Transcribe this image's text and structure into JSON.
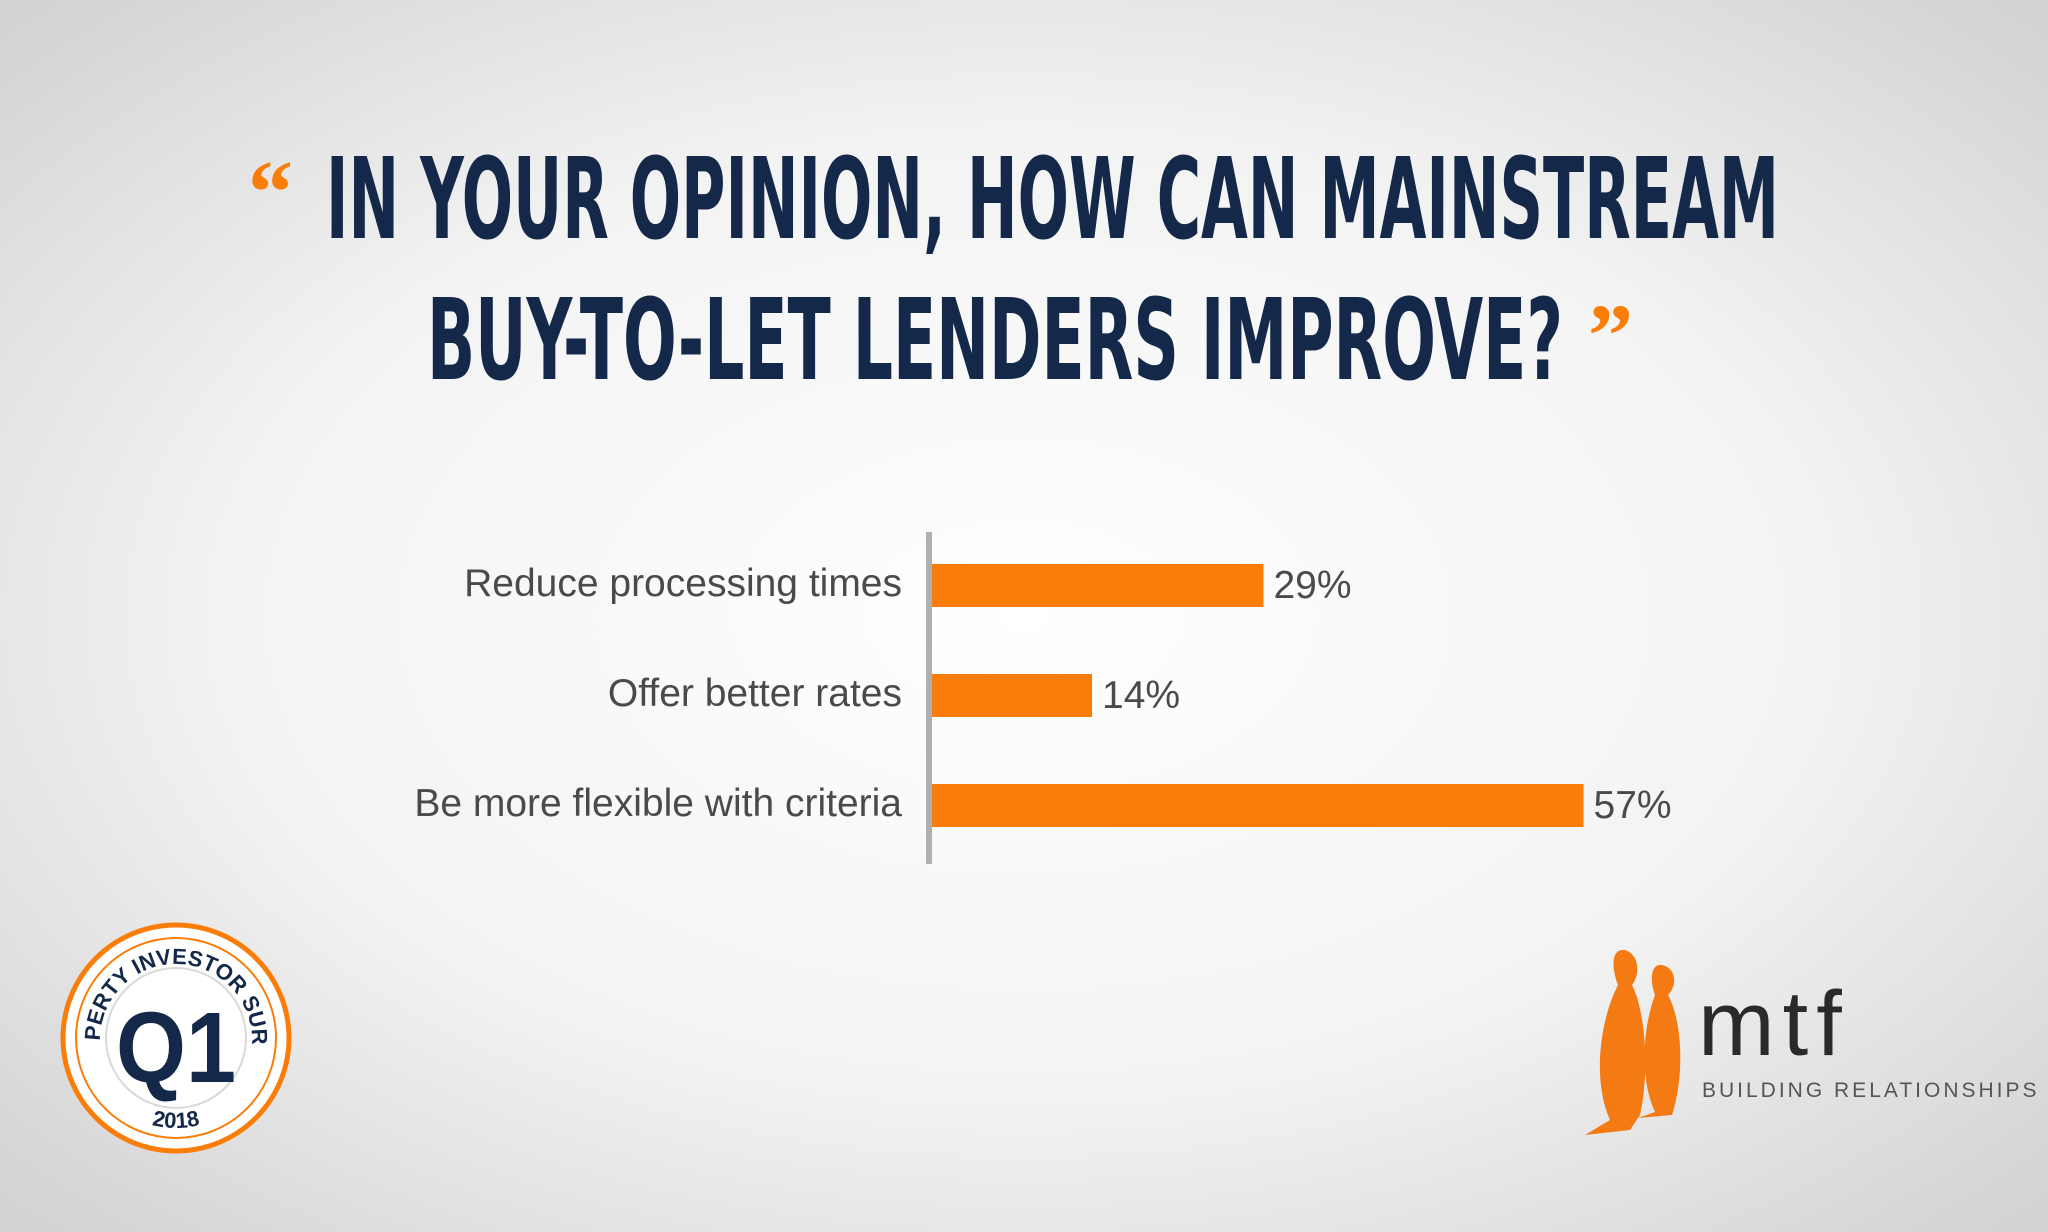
{
  "chart_data": {
    "type": "hbar",
    "quote_open": "“",
    "quote_close": "”",
    "title": [
      "IN YOUR OPINION, HOW CAN MAINSTREAM",
      "BUY-TO-LET LENDERS IMPROVE?"
    ],
    "categories": [
      "Reduce processing times",
      "Offer better rates",
      "Be more flexible with criteria"
    ],
    "values": [
      29,
      14,
      57
    ],
    "value_labels": [
      "29%",
      "14%",
      "57%"
    ],
    "color": "#fb7d09"
  },
  "badge": {
    "arc_text": "PROPERTY INVESTOR SURVEY",
    "label": "Q1",
    "year": "2018"
  },
  "logo": {
    "name": "mtf",
    "tagline": "BUILDING RELATIONSHIPS"
  }
}
